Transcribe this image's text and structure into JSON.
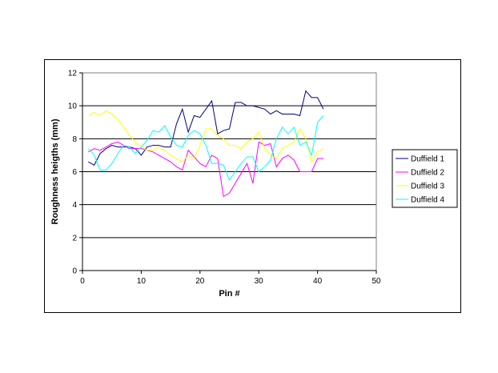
{
  "chart_data": {
    "type": "line",
    "title": "",
    "xlabel": "Pin #",
    "ylabel": "Roughness heigths (mm)",
    "xlim": [
      0,
      50
    ],
    "ylim": [
      0,
      12
    ],
    "x_ticks": [
      0,
      10,
      20,
      30,
      40,
      50
    ],
    "y_ticks": [
      0,
      2,
      4,
      6,
      8,
      10,
      12
    ],
    "grid": "horizontal major lines",
    "legend_position": "right",
    "x": [
      1,
      2,
      3,
      4,
      5,
      6,
      7,
      8,
      9,
      10,
      11,
      12,
      13,
      14,
      15,
      16,
      17,
      18,
      19,
      20,
      21,
      22,
      23,
      24,
      25,
      26,
      27,
      28,
      29,
      30,
      31,
      32,
      33,
      34,
      35,
      36,
      37,
      38,
      39,
      40,
      41
    ],
    "series": [
      {
        "name": "Duffield 1",
        "color": "#000080",
        "values": [
          6.6,
          6.4,
          7.1,
          7.4,
          7.6,
          7.5,
          7.5,
          7.5,
          7.4,
          7.0,
          7.5,
          7.6,
          7.6,
          7.5,
          7.5,
          8.9,
          9.8,
          8.4,
          9.4,
          9.3,
          9.8,
          10.3,
          8.3,
          8.5,
          8.6,
          10.2,
          10.2,
          10.0,
          10.0,
          9.9,
          9.8,
          9.5,
          9.7,
          9.5,
          9.5,
          9.5,
          9.4,
          10.9,
          10.5,
          10.5,
          9.8
        ]
      },
      {
        "name": "Duffield 2",
        "color": "#FF00FF",
        "values": [
          7.2,
          7.4,
          7.3,
          7.5,
          7.7,
          7.8,
          7.6,
          7.4,
          7.4,
          7.4,
          7.3,
          7.2,
          7.0,
          6.8,
          6.6,
          6.3,
          6.1,
          7.3,
          6.9,
          6.5,
          6.3,
          7.0,
          6.8,
          4.5,
          4.7,
          5.3,
          5.9,
          6.5,
          5.3,
          7.8,
          7.6,
          7.7,
          6.3,
          6.8,
          7.0,
          6.7,
          6.0,
          6.0,
          6.0,
          6.8,
          6.8
        ]
      },
      {
        "name": "Duffield 3",
        "color": "#FFFF00",
        "values": [
          9.4,
          9.6,
          9.4,
          9.7,
          9.5,
          9.2,
          8.7,
          8.2,
          7.8,
          7.5,
          7.3,
          7.3,
          7.5,
          7.3,
          7.0,
          6.8,
          6.6,
          7.0,
          6.8,
          7.6,
          8.6,
          8.6,
          8.2,
          8.0,
          7.6,
          7.6,
          7.4,
          7.8,
          8.0,
          8.4,
          7.4,
          7.0,
          6.8,
          7.4,
          7.6,
          7.8,
          8.6,
          8.0,
          6.6,
          7.2,
          7.4
        ]
      },
      {
        "name": "Duffield 4",
        "color": "#00FFFF",
        "values": [
          7.4,
          7.0,
          6.1,
          6.1,
          6.5,
          7.1,
          7.6,
          7.5,
          7.1,
          7.5,
          7.9,
          8.5,
          8.4,
          8.8,
          8.1,
          7.6,
          7.5,
          8.2,
          8.5,
          8.3,
          7.6,
          6.5,
          6.5,
          6.4,
          5.5,
          6.0,
          6.5,
          6.9,
          6.9,
          6.0,
          6.3,
          6.7,
          8.0,
          8.7,
          8.3,
          8.7,
          7.6,
          7.8,
          7.0,
          9.0,
          9.4
        ]
      }
    ]
  }
}
